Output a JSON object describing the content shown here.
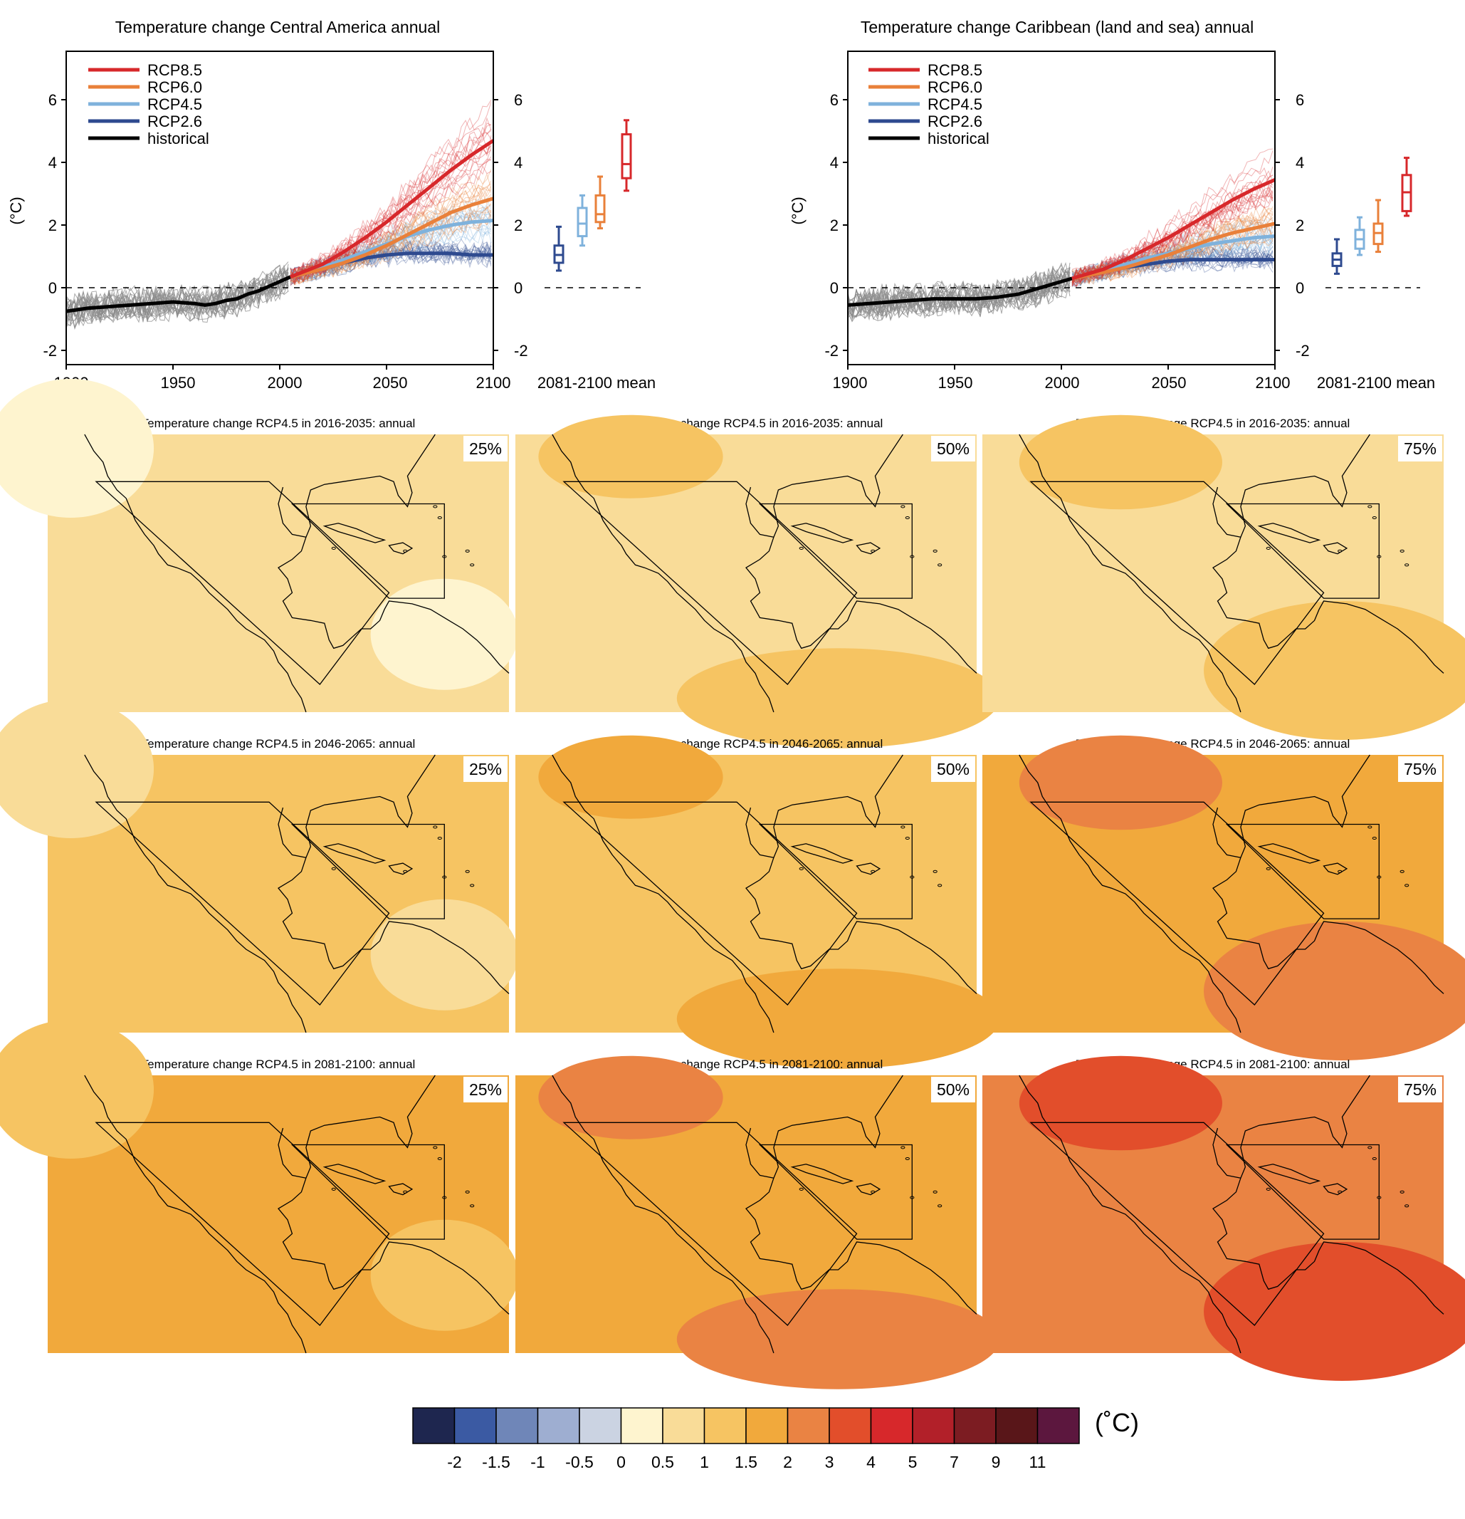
{
  "colors": {
    "rcp85": "#d7282b",
    "rcp60": "#e9803a",
    "rcp45": "#7fb2dc",
    "rcp26": "#2e4a8f",
    "historical": "#000000",
    "hist_members": "#8c8c8c"
  },
  "chart_data": [
    {
      "type": "line",
      "title": "Temperature change Central America annual",
      "ylabel": "(°C)",
      "xlim": [
        1900,
        2100
      ],
      "ylim": [
        -2.5,
        7.5
      ],
      "x_ticks": [
        "1900",
        "1950",
        "2000",
        "2050",
        "2100"
      ],
      "y_ticks": [
        "-2",
        "0",
        "2",
        "4",
        "6"
      ],
      "legend_position": "top-left",
      "legend": [
        "RCP8.5",
        "RCP6.0",
        "RCP4.5",
        "RCP2.6",
        "historical"
      ],
      "series": [
        {
          "name": "historical",
          "x": [
            1900,
            1905,
            1910,
            1920,
            1930,
            1940,
            1950,
            1960,
            1965,
            1970,
            1975,
            1980,
            1985,
            1990,
            1995,
            2000,
            2005
          ],
          "y": [
            -0.8,
            -0.75,
            -0.7,
            -0.65,
            -0.6,
            -0.55,
            -0.5,
            -0.55,
            -0.6,
            -0.55,
            -0.45,
            -0.4,
            -0.25,
            -0.15,
            0.0,
            0.15,
            0.3
          ]
        },
        {
          "name": "RCP2.6",
          "x": [
            2005,
            2020,
            2030,
            2040,
            2050,
            2060,
            2070,
            2080,
            2090,
            2100
          ],
          "y": [
            0.3,
            0.55,
            0.75,
            0.9,
            1.0,
            1.05,
            1.05,
            1.05,
            1.0,
            1.0
          ]
        },
        {
          "name": "RCP4.5",
          "x": [
            2005,
            2020,
            2030,
            2040,
            2050,
            2060,
            2070,
            2080,
            2090,
            2100
          ],
          "y": [
            0.3,
            0.6,
            0.85,
            1.1,
            1.35,
            1.6,
            1.8,
            1.95,
            2.05,
            2.1
          ]
        },
        {
          "name": "RCP6.0",
          "x": [
            2005,
            2020,
            2030,
            2040,
            2050,
            2060,
            2070,
            2080,
            2090,
            2100
          ],
          "y": [
            0.3,
            0.55,
            0.75,
            1.0,
            1.3,
            1.65,
            2.0,
            2.35,
            2.6,
            2.8
          ]
        },
        {
          "name": "RCP8.5",
          "x": [
            2005,
            2020,
            2030,
            2040,
            2050,
            2060,
            2070,
            2080,
            2090,
            2100
          ],
          "y": [
            0.3,
            0.7,
            1.1,
            1.55,
            2.05,
            2.6,
            3.15,
            3.7,
            4.2,
            4.65
          ]
        }
      ],
      "boxplot": {
        "label": "2081-2100 mean",
        "boxes": [
          {
            "name": "RCP2.6",
            "min": 0.5,
            "q1": 0.75,
            "median": 1.0,
            "q3": 1.3,
            "max": 1.9
          },
          {
            "name": "RCP4.5",
            "min": 1.3,
            "q1": 1.6,
            "median": 2.0,
            "q3": 2.5,
            "max": 2.9
          },
          {
            "name": "RCP6.0",
            "min": 1.85,
            "q1": 2.05,
            "median": 2.3,
            "q3": 2.9,
            "max": 3.5
          },
          {
            "name": "RCP8.5",
            "min": 3.05,
            "q1": 3.45,
            "median": 3.9,
            "q3": 4.85,
            "max": 5.3
          }
        ]
      }
    },
    {
      "type": "line",
      "title": "Temperature change Caribbean (land and sea) annual",
      "ylabel": "(°C)",
      "xlim": [
        1900,
        2100
      ],
      "ylim": [
        -2.5,
        7.5
      ],
      "x_ticks": [
        "1900",
        "1950",
        "2000",
        "2050",
        "2100"
      ],
      "y_ticks": [
        "-2",
        "0",
        "2",
        "4",
        "6"
      ],
      "legend_position": "top-left",
      "legend": [
        "RCP8.5",
        "RCP6.0",
        "RCP4.5",
        "RCP2.6",
        "historical"
      ],
      "series": [
        {
          "name": "historical",
          "x": [
            1900,
            1910,
            1920,
            1930,
            1940,
            1950,
            1960,
            1970,
            1975,
            1980,
            1985,
            1990,
            1995,
            2000,
            2005
          ],
          "y": [
            -0.6,
            -0.55,
            -0.5,
            -0.45,
            -0.4,
            -0.4,
            -0.4,
            -0.35,
            -0.3,
            -0.25,
            -0.15,
            -0.05,
            0.05,
            0.15,
            0.25
          ]
        },
        {
          "name": "RCP2.6",
          "x": [
            2005,
            2020,
            2030,
            2040,
            2050,
            2060,
            2070,
            2080,
            2090,
            2100
          ],
          "y": [
            0.25,
            0.45,
            0.6,
            0.7,
            0.8,
            0.85,
            0.85,
            0.85,
            0.85,
            0.85
          ]
        },
        {
          "name": "RCP4.5",
          "x": [
            2005,
            2020,
            2030,
            2040,
            2050,
            2060,
            2070,
            2080,
            2090,
            2100
          ],
          "y": [
            0.25,
            0.5,
            0.7,
            0.9,
            1.05,
            1.2,
            1.35,
            1.45,
            1.55,
            1.6
          ]
        },
        {
          "name": "RCP6.0",
          "x": [
            2005,
            2020,
            2030,
            2040,
            2050,
            2060,
            2070,
            2080,
            2090,
            2100
          ],
          "y": [
            0.25,
            0.45,
            0.6,
            0.8,
            1.0,
            1.25,
            1.5,
            1.7,
            1.85,
            2.0
          ]
        },
        {
          "name": "RCP8.5",
          "x": [
            2005,
            2020,
            2030,
            2040,
            2050,
            2060,
            2070,
            2080,
            2090,
            2100
          ],
          "y": [
            0.25,
            0.55,
            0.85,
            1.2,
            1.55,
            1.95,
            2.35,
            2.75,
            3.1,
            3.4
          ]
        }
      ],
      "boxplot": {
        "label": "2081-2100 mean",
        "boxes": [
          {
            "name": "RCP2.6",
            "min": 0.4,
            "q1": 0.65,
            "median": 0.85,
            "q3": 1.05,
            "max": 1.5
          },
          {
            "name": "RCP4.5",
            "min": 1.0,
            "q1": 1.2,
            "median": 1.5,
            "q3": 1.8,
            "max": 2.2
          },
          {
            "name": "RCP6.0",
            "min": 1.1,
            "q1": 1.35,
            "median": 1.7,
            "q3": 2.0,
            "max": 2.75
          },
          {
            "name": "RCP8.5",
            "min": 2.25,
            "q1": 2.4,
            "median": 3.0,
            "q3": 3.55,
            "max": 4.1
          }
        ]
      }
    },
    {
      "type": "heatmap",
      "title": "Temperature change RCP4.5 in 2016-2035: annual",
      "maps": [
        {
          "percentile": "25%",
          "dominant_category": "0.5-1",
          "secondary_category": "0-0.5"
        },
        {
          "percentile": "50%",
          "dominant_category": "0.5-1",
          "secondary_category": "1-1.5"
        },
        {
          "percentile": "75%",
          "dominant_category": "0.5-1",
          "secondary_category": "1-1.5"
        }
      ]
    },
    {
      "type": "heatmap",
      "title": "Temperature change RCP4.5 in 2046-2065: annual",
      "maps": [
        {
          "percentile": "25%",
          "dominant_category": "1-1.5",
          "secondary_category": "0.5-1"
        },
        {
          "percentile": "50%",
          "dominant_category": "1-1.5",
          "secondary_category": "1.5-2"
        },
        {
          "percentile": "75%",
          "dominant_category": "1.5-2",
          "secondary_category": "2-3"
        }
      ]
    },
    {
      "type": "heatmap",
      "title": "Temperature change RCP4.5 in 2081-2100: annual",
      "maps": [
        {
          "percentile": "25%",
          "dominant_category": "1.5-2",
          "secondary_category": "1-1.5"
        },
        {
          "percentile": "50%",
          "dominant_category": "1.5-2",
          "secondary_category": "2-3"
        },
        {
          "percentile": "75%",
          "dominant_category": "2-3",
          "secondary_category": "3-4"
        }
      ]
    }
  ],
  "map_palette": {
    "0-0.5": "#fef4cf",
    "0.5-1": "#f9dc98",
    "1-1.5": "#f6c462",
    "1.5-2": "#f1a93c",
    "2-3": "#ea8343",
    "3-4": "#e24e2b"
  },
  "colorbar": {
    "unit": "(˚C)",
    "ticks": [
      "-2",
      "-1.5",
      "-1",
      "-0.5",
      "0",
      "0.5",
      "1",
      "1.5",
      "2",
      "3",
      "4",
      "5",
      "7",
      "9",
      "11"
    ],
    "colors": [
      "#1e264f",
      "#3b5aa3",
      "#6f86b8",
      "#9eaed1",
      "#cbd3e2",
      "#fef4cf",
      "#f9dc98",
      "#f6c462",
      "#f1a93c",
      "#ea8343",
      "#e24e2b",
      "#d7282b",
      "#b22029",
      "#7c1c22",
      "#591619",
      "#5c173e"
    ]
  }
}
